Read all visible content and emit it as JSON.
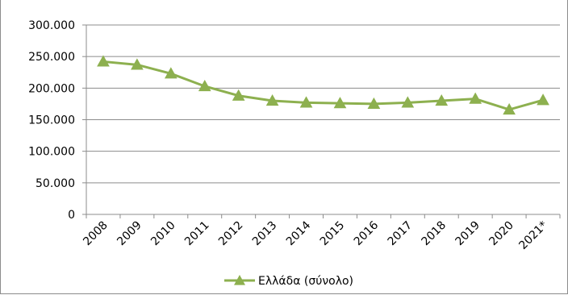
{
  "chart_data": {
    "type": "line",
    "title": "",
    "xlabel": "",
    "ylabel": "",
    "categories": [
      "2008",
      "2009",
      "2010",
      "2011",
      "2012",
      "2013",
      "2014",
      "2015",
      "2016",
      "2017",
      "2018",
      "2019",
      "2020",
      "2021*"
    ],
    "series": [
      {
        "name": "Ελλάδα (σύνολο)",
        "color": "#8db04f",
        "marker": "triangle",
        "values": [
          242000,
          237000,
          223000,
          203000,
          188000,
          180000,
          177000,
          176000,
          175000,
          177000,
          180000,
          183000,
          166000,
          181000
        ]
      }
    ],
    "ylim": [
      0,
      300000
    ],
    "y_ticks": [
      "0",
      "50.000",
      "100.000",
      "150.000",
      "200.000",
      "250.000",
      "300.000"
    ],
    "grid": true,
    "legend_position": "bottom"
  }
}
